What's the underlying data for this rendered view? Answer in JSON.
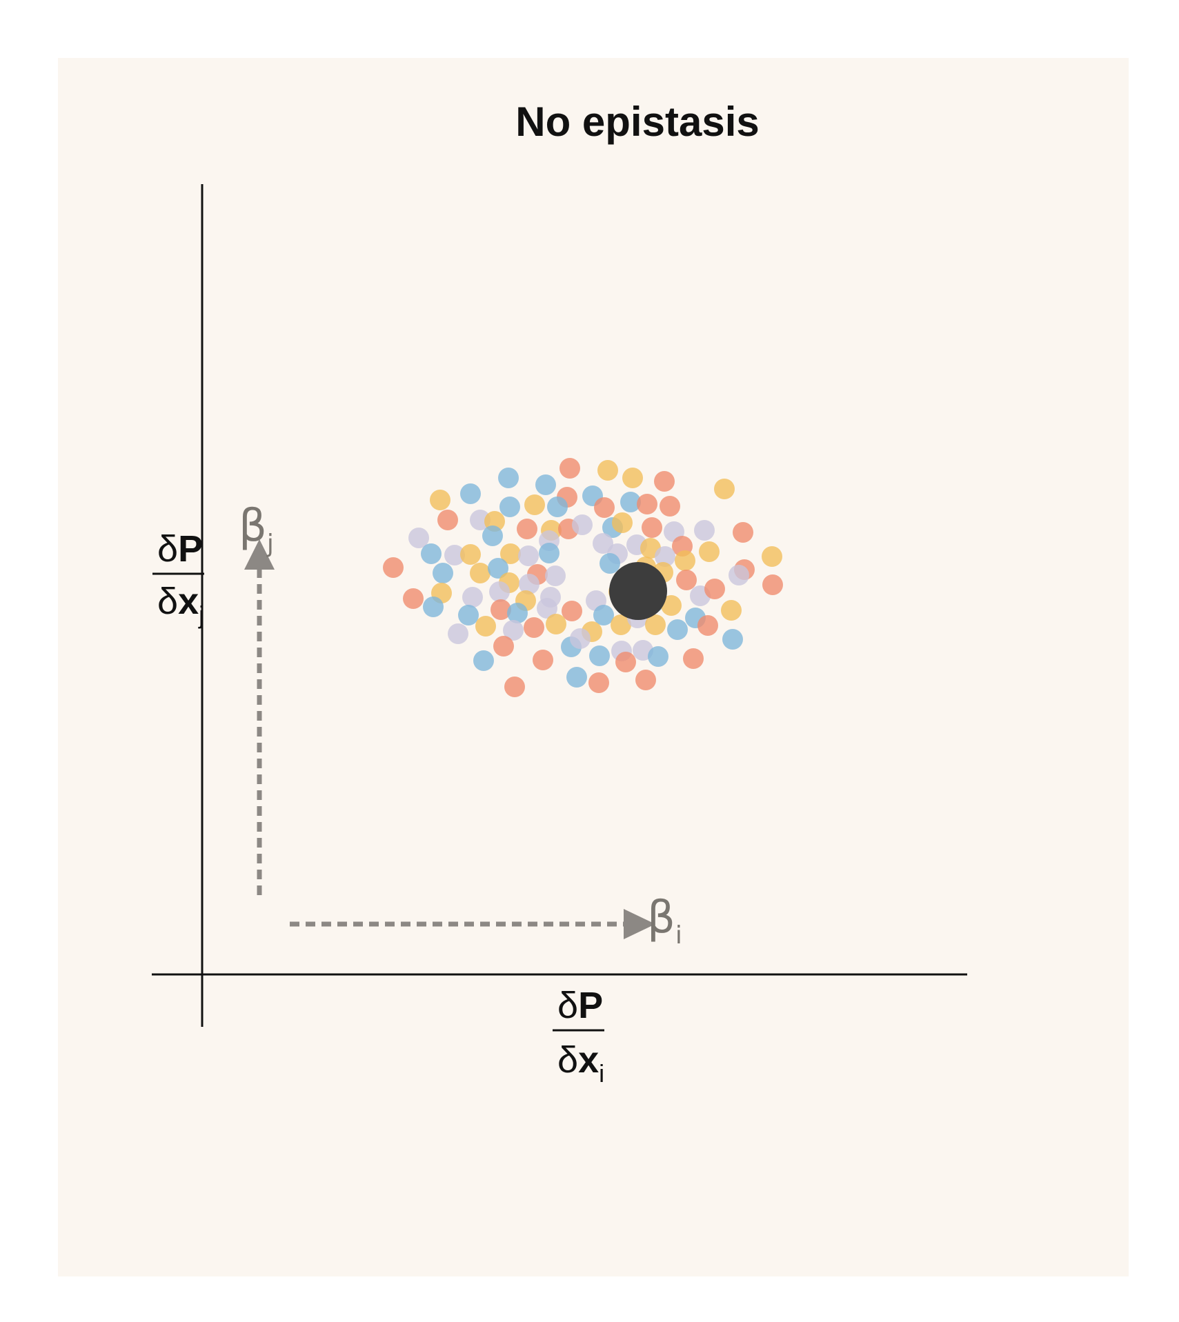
{
  "title": "No epistasis",
  "y_axis_label": {
    "numerator_delta": "δ",
    "numerator_var": "P",
    "denominator_delta": "δ",
    "denominator_var": "x",
    "denominator_sub": "j"
  },
  "x_axis_label": {
    "numerator_delta": "δ",
    "numerator_var": "P",
    "denominator_delta": "δ",
    "denominator_var": "x",
    "denominator_sub": "i"
  },
  "beta_j": {
    "symbol": "β",
    "sub": "j"
  },
  "beta_i": {
    "symbol": "β",
    "sub": "i"
  },
  "colors": {
    "panel_bg": "#fbf6f0",
    "axis": "#111111",
    "arrow": "#8c8884",
    "center": "#3d3d3d",
    "series": {
      "red": "#ef8a6c",
      "yellow": "#f2be59",
      "blue": "#7eb6da",
      "lavender": "#c9c5dc"
    }
  },
  "icons": {
    "arrow_up": "arrow-up-icon",
    "arrow_right": "arrow-right-icon"
  }
}
